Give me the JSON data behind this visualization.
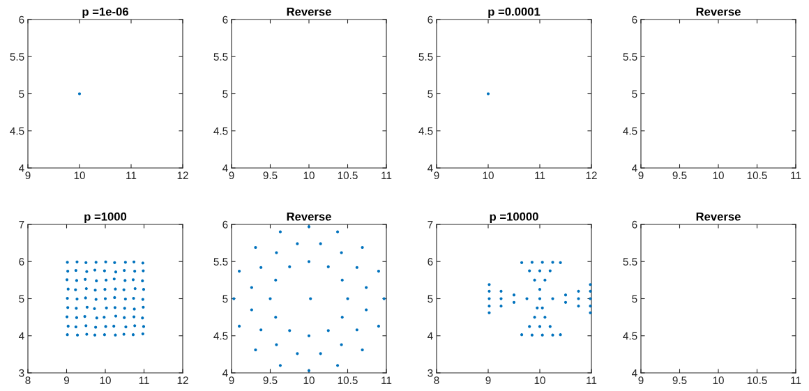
{
  "chart_data": [
    {
      "type": "scatter",
      "title": "p =1e-06",
      "xlim": [
        9,
        12
      ],
      "xticks": [
        9,
        10,
        11,
        12
      ],
      "ylim": [
        4,
        6
      ],
      "yticks": [
        4,
        4.5,
        5,
        5.5,
        6
      ],
      "marker": "circle",
      "color": "#0072bd",
      "x": [
        10
      ],
      "values": [
        5
      ]
    },
    {
      "type": "scatter",
      "title": "Reverse",
      "xlim": [
        9,
        11
      ],
      "xticks": [
        9,
        9.5,
        10,
        10.5,
        11
      ],
      "ylim": [
        4,
        6
      ],
      "yticks": [
        4,
        4.5,
        5,
        5.5,
        6
      ]
    },
    {
      "type": "scatter",
      "title": "p =0.0001",
      "xlim": [
        9,
        12
      ],
      "xticks": [
        9,
        10,
        11,
        12
      ],
      "ylim": [
        4,
        6
      ],
      "yticks": [
        4,
        4.5,
        5,
        5.5,
        6
      ],
      "marker": "circle",
      "color": "#0072bd",
      "x": [
        10
      ],
      "values": [
        5
      ]
    },
    {
      "type": "scatter",
      "title": "Reverse",
      "xlim": [
        9,
        11
      ],
      "xticks": [
        9,
        9.5,
        10,
        10.5,
        11
      ],
      "ylim": [
        4,
        6
      ],
      "yticks": [
        4,
        4.5,
        5,
        5.5,
        6
      ]
    },
    {
      "type": "scatter",
      "title": "p =1000",
      "xlim": [
        8,
        12
      ],
      "xticks": [
        8,
        9,
        10,
        11,
        12
      ],
      "ylim": [
        3,
        7
      ],
      "yticks": [
        3,
        4,
        5,
        6,
        7
      ],
      "marker": "circle",
      "color": "#0072bd",
      "x": [
        9.02,
        9.27,
        9.5,
        9.76,
        10.01,
        10.24,
        10.52,
        10.74,
        10.97,
        9.03,
        9.24,
        9.52,
        9.73,
        9.98,
        10.27,
        10.49,
        10.76,
        10.98,
        9.01,
        9.26,
        9.48,
        9.77,
        10.02,
        10.23,
        10.51,
        10.72,
        10.96,
        9.04,
        9.23,
        9.51,
        9.74,
        9.99,
        10.26,
        10.48,
        10.77,
        10.99,
        9.02,
        9.27,
        9.49,
        9.76,
        10.0,
        10.24,
        10.52,
        10.73,
        10.97,
        9.03,
        9.25,
        9.53,
        9.72,
        10.03,
        10.25,
        10.5,
        10.75,
        10.98,
        9.01,
        9.26,
        9.47,
        9.78,
        9.97,
        10.27,
        10.49,
        10.74,
        10.96,
        9.04,
        9.24,
        9.5,
        9.75,
        10.01,
        10.22,
        10.53,
        10.76,
        10.99,
        9.02,
        9.28,
        9.52,
        9.73,
        9.98,
        10.26,
        10.48,
        10.72,
        10.97
      ],
      "values": [
        5.98,
        5.99,
        5.97,
        5.98,
        5.99,
        5.97,
        5.98,
        5.99,
        5.96,
        5.74,
        5.76,
        5.73,
        5.77,
        5.75,
        5.72,
        5.76,
        5.74,
        5.75,
        5.51,
        5.49,
        5.52,
        5.48,
        5.5,
        5.53,
        5.49,
        5.51,
        5.48,
        5.26,
        5.24,
        5.27,
        5.23,
        5.25,
        5.26,
        5.24,
        5.27,
        5.25,
        5.01,
        4.99,
        5.02,
        4.98,
        5.0,
        5.03,
        4.99,
        5.01,
        4.98,
        4.76,
        4.74,
        4.77,
        4.73,
        4.75,
        4.76,
        4.74,
        4.72,
        4.77,
        4.51,
        4.49,
        4.52,
        4.48,
        4.5,
        4.53,
        4.49,
        4.51,
        4.48,
        4.26,
        4.24,
        4.27,
        4.23,
        4.25,
        4.26,
        4.24,
        4.27,
        4.25,
        4.03,
        4.02,
        4.04,
        4.02,
        4.03,
        4.02,
        4.04,
        4.03,
        4.05
      ]
    },
    {
      "type": "scatter",
      "title": "Reverse",
      "xlim": [
        9,
        11
      ],
      "xticks": [
        9,
        9.5,
        10,
        10.5,
        11
      ],
      "ylim": [
        4,
        6
      ],
      "yticks": [
        4,
        4.5,
        5,
        5.5,
        6
      ],
      "marker": "circle",
      "color": "#0072bd",
      "x": [
        10.97,
        10.9,
        10.69,
        10.37,
        10.0,
        9.63,
        9.31,
        9.1,
        9.03,
        9.1,
        9.31,
        9.63,
        10.0,
        10.37,
        10.69,
        10.9,
        10.74,
        10.62,
        10.42,
        10.15,
        9.85,
        9.58,
        9.38,
        9.26,
        9.26,
        9.38,
        9.58,
        9.85,
        10.15,
        10.42,
        10.62,
        10.74,
        10.5,
        10.43,
        10.25,
        10.0,
        9.75,
        9.57,
        9.5,
        9.57,
        9.75,
        10.0,
        10.25,
        10.43,
        10.02
      ],
      "values": [
        5.0,
        5.37,
        5.69,
        5.9,
        5.97,
        5.9,
        5.69,
        5.37,
        5.0,
        4.63,
        4.31,
        4.1,
        4.03,
        4.1,
        4.31,
        4.63,
        5.15,
        5.42,
        5.62,
        5.74,
        5.74,
        5.62,
        5.42,
        5.15,
        4.85,
        4.58,
        4.38,
        4.26,
        4.26,
        4.38,
        4.58,
        4.85,
        5.0,
        5.25,
        5.43,
        5.5,
        5.43,
        5.25,
        5.0,
        4.75,
        4.57,
        4.5,
        4.57,
        4.75,
        5.0
      ]
    },
    {
      "type": "scatter",
      "title": "p =10000",
      "xlim": [
        8,
        11
      ],
      "xticks": [
        8,
        9,
        10,
        11
      ],
      "ylim": [
        3,
        7
      ],
      "yticks": [
        3,
        4,
        5,
        6,
        7
      ],
      "marker": "circle",
      "color": "#0072bd",
      "x": [
        10.0,
        10.0,
        9.9,
        10.1,
        9.8,
        10.0,
        10.2,
        9.65,
        9.85,
        10.05,
        10.25,
        10.4,
        9.95,
        10.05,
        9.9,
        10.1,
        9.8,
        10.0,
        10.2,
        9.65,
        9.85,
        10.05,
        10.25,
        10.4,
        9.75,
        9.5,
        9.5,
        9.25,
        9.25,
        9.25,
        9.02,
        9.02,
        9.02,
        9.02,
        9.02,
        10.25,
        10.5,
        10.5,
        10.75,
        10.75,
        10.75,
        10.98,
        10.98,
        10.98,
        10.98,
        10.98
      ],
      "values": [
        5.0,
        5.25,
        5.5,
        5.5,
        5.75,
        5.75,
        5.75,
        5.97,
        5.98,
        5.98,
        5.98,
        5.97,
        4.75,
        4.75,
        4.5,
        4.5,
        4.25,
        4.25,
        4.25,
        4.03,
        4.02,
        4.02,
        4.02,
        4.03,
        5.0,
        4.9,
        5.1,
        4.8,
        5.0,
        5.2,
        4.62,
        4.8,
        5.0,
        5.2,
        5.38,
        5.0,
        4.9,
        5.1,
        4.8,
        5.0,
        5.2,
        4.62,
        4.8,
        5.0,
        5.2,
        5.38
      ]
    },
    {
      "type": "scatter",
      "title": "Reverse",
      "xlim": [
        9,
        11
      ],
      "xticks": [
        9,
        9.5,
        10,
        10.5,
        11
      ],
      "ylim": [
        4,
        6
      ],
      "yticks": [
        4,
        4.5,
        5,
        5.5,
        6
      ]
    }
  ]
}
